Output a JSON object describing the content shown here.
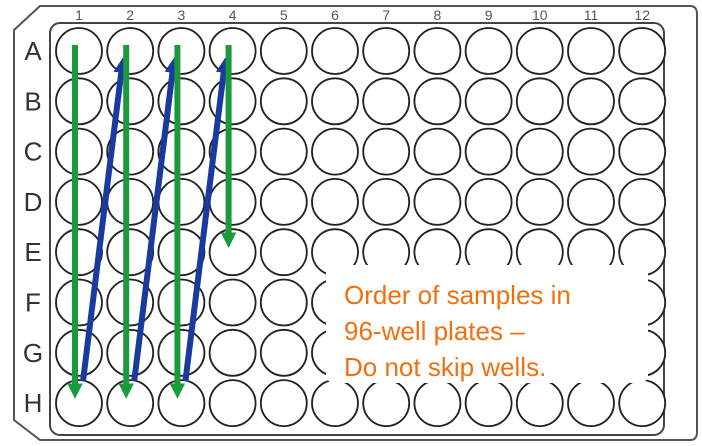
{
  "plate": {
    "columns": [
      "1",
      "2",
      "3",
      "4",
      "5",
      "6",
      "7",
      "8",
      "9",
      "10",
      "11",
      "12"
    ],
    "rows": [
      "A",
      "B",
      "C",
      "D",
      "E",
      "F",
      "G",
      "H"
    ]
  },
  "note": {
    "lines": [
      "Order of samples in",
      "96-well plates  –",
      "Do not skip wells."
    ],
    "color": "#f07010"
  },
  "colors": {
    "down_arrow": "#1a9a3a",
    "up_arrow": "#1a3aa0",
    "well_stroke": "#222222"
  },
  "arrows": [
    {
      "type": "down",
      "col": 1,
      "from": "A",
      "to": "H"
    },
    {
      "type": "up",
      "from_well": "H1",
      "to_well": "A2"
    },
    {
      "type": "down",
      "col": 2,
      "from": "A",
      "to": "H"
    },
    {
      "type": "up",
      "from_well": "H2",
      "to_well": "A3"
    },
    {
      "type": "down",
      "col": 3,
      "from": "A",
      "to": "H"
    },
    {
      "type": "up",
      "from_well": "H3",
      "to_well": "A4"
    },
    {
      "type": "down",
      "col": 4,
      "from": "A",
      "to": "E"
    }
  ]
}
